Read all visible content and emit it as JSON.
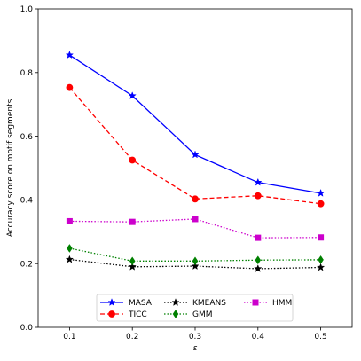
{
  "chart_data": {
    "type": "line",
    "x": [
      0.1,
      0.2,
      0.3,
      0.4,
      0.5
    ],
    "xticks": [
      "0.1",
      "0.2",
      "0.3",
      "0.4",
      "0.5"
    ],
    "yticks": [
      "0.0",
      "0.2",
      "0.4",
      "0.6",
      "0.8",
      "1.0"
    ],
    "xlabel": "ε",
    "ylabel": "Accuracy score on motif segments",
    "xlim": [
      0.05,
      0.55
    ],
    "ylim": [
      0.0,
      1.0
    ],
    "grid": false,
    "legend_position": "bottom-center",
    "series": [
      {
        "name": "MASA",
        "values": [
          0.855,
          0.727,
          0.542,
          0.455,
          0.421
        ],
        "color": "#0000ff",
        "dash": "solid",
        "marker": "star"
      },
      {
        "name": "TICC",
        "values": [
          0.753,
          0.525,
          0.403,
          0.413,
          0.388
        ],
        "color": "#ff0000",
        "dash": "dashed",
        "marker": "circle"
      },
      {
        "name": "KMEANS",
        "values": [
          0.213,
          0.19,
          0.192,
          0.184,
          0.188
        ],
        "color": "#000000",
        "dash": "dotted",
        "marker": "star"
      },
      {
        "name": "GMM",
        "values": [
          0.248,
          0.208,
          0.208,
          0.211,
          0.212
        ],
        "color": "#008000",
        "dash": "dotted",
        "marker": "diamond"
      },
      {
        "name": "HMM",
        "values": [
          0.333,
          0.331,
          0.34,
          0.281,
          0.282
        ],
        "color": "#cc00cc",
        "dash": "dotted",
        "marker": "square"
      }
    ]
  }
}
